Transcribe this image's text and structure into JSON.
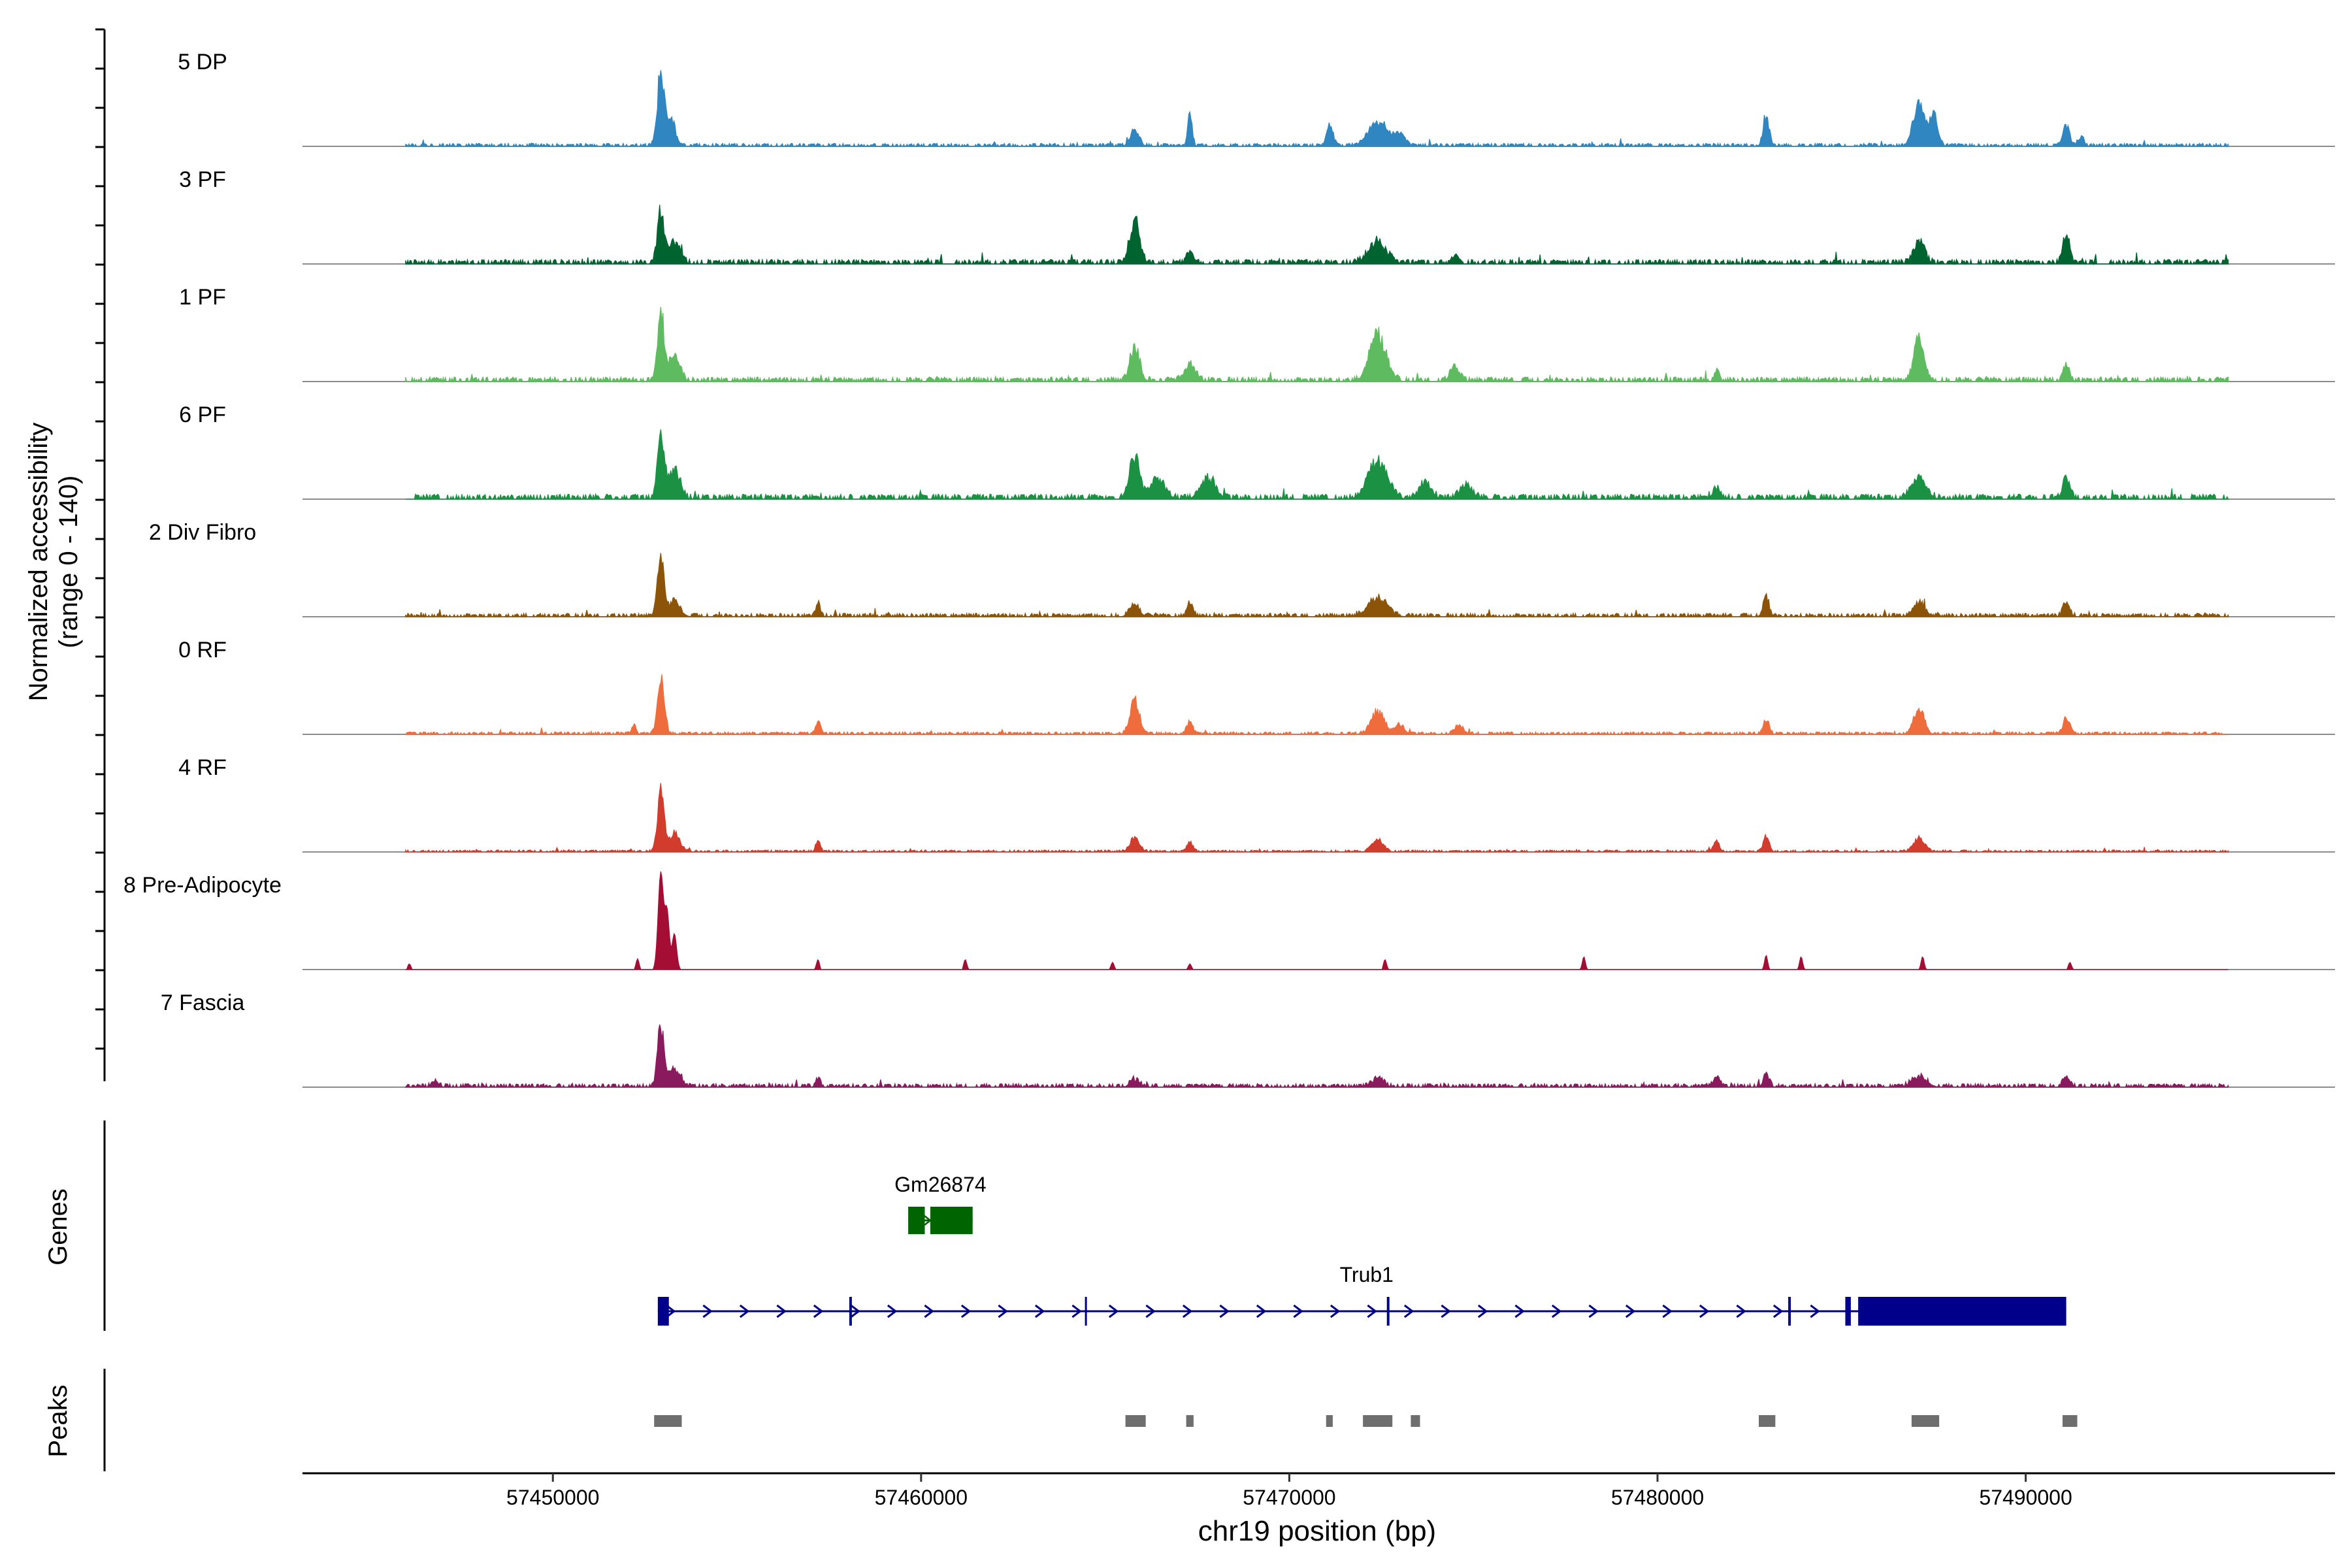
{
  "chart_data": {
    "type": "area",
    "title": "",
    "y_axis_label_line1": "Normalized accessibility",
    "y_axis_label_line2": "(range 0 - 140)",
    "y_range": [
      0,
      140
    ],
    "x_axis_label": "chr19 position (bp)",
    "x_range": [
      57443200,
      57498400
    ],
    "x_ticks": [
      57450000,
      57460000,
      57470000,
      57480000,
      57490000
    ],
    "x_tick_labels": [
      "57450000",
      "57460000",
      "57470000",
      "57480000",
      "57490000"
    ],
    "tracks": [
      {
        "name": "5 DP",
        "color": "#2f86c1",
        "jitter": 0.12,
        "sparse": false,
        "peaks": [
          [
            57452930,
            1.0,
            90
          ],
          [
            57453200,
            0.4,
            120
          ],
          [
            57465800,
            0.18,
            120
          ],
          [
            57467300,
            0.45,
            60
          ],
          [
            57471100,
            0.27,
            90
          ],
          [
            57472400,
            0.33,
            250
          ],
          [
            57473000,
            0.14,
            150
          ],
          [
            57482950,
            0.44,
            80
          ],
          [
            57487100,
            0.55,
            150
          ],
          [
            57487500,
            0.42,
            110
          ],
          [
            57491100,
            0.3,
            90
          ],
          [
            57491500,
            0.12,
            80
          ]
        ]
      },
      {
        "name": "3 PF",
        "color": "#006430",
        "jitter": 0.18,
        "sparse": false,
        "peaks": [
          [
            57452930,
            0.72,
            90
          ],
          [
            57453300,
            0.3,
            150
          ],
          [
            57465800,
            0.62,
            130
          ],
          [
            57467300,
            0.15,
            80
          ],
          [
            57472400,
            0.28,
            250
          ],
          [
            57474500,
            0.12,
            60
          ],
          [
            57487100,
            0.3,
            150
          ],
          [
            57491100,
            0.4,
            90
          ]
        ]
      },
      {
        "name": "1 PF",
        "color": "#5fbb5f",
        "jitter": 0.18,
        "sparse": false,
        "peaks": [
          [
            57452930,
            0.9,
            90
          ],
          [
            57453300,
            0.35,
            150
          ],
          [
            57465800,
            0.45,
            130
          ],
          [
            57467300,
            0.22,
            150
          ],
          [
            57472400,
            0.62,
            220
          ],
          [
            57474500,
            0.2,
            120
          ],
          [
            57481600,
            0.15,
            60
          ],
          [
            57487100,
            0.55,
            140
          ],
          [
            57491100,
            0.2,
            90
          ]
        ]
      },
      {
        "name": "6 PF",
        "color": "#1a9143",
        "jitter": 0.2,
        "sparse": false,
        "peaks": [
          [
            57452930,
            0.85,
            90
          ],
          [
            57453300,
            0.4,
            150
          ],
          [
            57465800,
            0.6,
            130
          ],
          [
            57466400,
            0.28,
            200
          ],
          [
            57467800,
            0.28,
            200
          ],
          [
            57472400,
            0.55,
            250
          ],
          [
            57473700,
            0.22,
            160
          ],
          [
            57474800,
            0.18,
            160
          ],
          [
            57481600,
            0.15,
            100
          ],
          [
            57487100,
            0.25,
            200
          ],
          [
            57491100,
            0.3,
            90
          ]
        ]
      },
      {
        "name": "2 Div Fibro",
        "color": "#8b5409",
        "jitter": 0.14,
        "sparse": false,
        "peaks": [
          [
            57452930,
            0.78,
            90
          ],
          [
            57453300,
            0.2,
            150
          ],
          [
            57457200,
            0.18,
            60
          ],
          [
            57465800,
            0.16,
            130
          ],
          [
            57467300,
            0.16,
            80
          ],
          [
            57472400,
            0.25,
            250
          ],
          [
            57482950,
            0.28,
            80
          ],
          [
            57487100,
            0.18,
            160
          ],
          [
            57491100,
            0.2,
            90
          ]
        ]
      },
      {
        "name": "0 RF",
        "color": "#ef6c3d",
        "jitter": 0.1,
        "sparse": false,
        "peaks": [
          [
            57452200,
            0.12,
            60
          ],
          [
            57452930,
            0.78,
            90
          ],
          [
            57457200,
            0.2,
            60
          ],
          [
            57465800,
            0.48,
            120
          ],
          [
            57467300,
            0.16,
            80
          ],
          [
            57472400,
            0.3,
            180
          ],
          [
            57473000,
            0.13,
            120
          ],
          [
            57474600,
            0.12,
            120
          ],
          [
            57482950,
            0.18,
            80
          ],
          [
            57487100,
            0.35,
            140
          ],
          [
            57491100,
            0.22,
            90
          ]
        ]
      },
      {
        "name": "4 RF",
        "color": "#d23c2c",
        "jitter": 0.08,
        "sparse": false,
        "peaks": [
          [
            57452930,
            0.8,
            90
          ],
          [
            57453300,
            0.25,
            150
          ],
          [
            57457200,
            0.14,
            60
          ],
          [
            57465800,
            0.2,
            120
          ],
          [
            57467300,
            0.12,
            80
          ],
          [
            57472400,
            0.15,
            150
          ],
          [
            57481600,
            0.15,
            80
          ],
          [
            57482950,
            0.2,
            80
          ],
          [
            57487100,
            0.2,
            140
          ]
        ]
      },
      {
        "name": "8 Pre-Adipocyte",
        "color": "#a40e35",
        "jitter": 0.0,
        "sparse": true,
        "peaks": [
          [
            57452930,
            1.35,
            70
          ],
          [
            57453100,
            0.8,
            60
          ],
          [
            57453300,
            0.5,
            60
          ],
          [
            57446100,
            0.08,
            40
          ],
          [
            57452300,
            0.15,
            40
          ],
          [
            57457200,
            0.14,
            40
          ],
          [
            57461200,
            0.14,
            40
          ],
          [
            57465200,
            0.1,
            40
          ],
          [
            57467300,
            0.08,
            40
          ],
          [
            57472600,
            0.14,
            40
          ],
          [
            57478000,
            0.18,
            40
          ],
          [
            57482950,
            0.2,
            40
          ],
          [
            57483900,
            0.18,
            40
          ],
          [
            57487200,
            0.18,
            40
          ],
          [
            57491200,
            0.1,
            40
          ]
        ]
      },
      {
        "name": "7 Fascia",
        "color": "#8a1a5e",
        "jitter": 0.14,
        "sparse": false,
        "peaks": [
          [
            57446800,
            0.08,
            90
          ],
          [
            57452930,
            0.78,
            90
          ],
          [
            57453300,
            0.25,
            150
          ],
          [
            57457200,
            0.12,
            60
          ],
          [
            57465800,
            0.1,
            120
          ],
          [
            57472400,
            0.12,
            150
          ],
          [
            57481600,
            0.12,
            100
          ],
          [
            57482950,
            0.16,
            80
          ],
          [
            57487100,
            0.14,
            200
          ],
          [
            57491100,
            0.14,
            90
          ]
        ]
      }
    ],
    "genes_panel_label": "Genes",
    "genes": [
      {
        "name": "Gm26874",
        "color": "#006400",
        "strand": "+",
        "start": 57459650,
        "end": 57461400,
        "exons": [
          [
            57459650,
            57460100
          ],
          [
            57460250,
            57461400
          ]
        ]
      },
      {
        "name": "Trub1",
        "color": "#00008b",
        "strand": "+",
        "start": 57452850,
        "end": 57491100,
        "exons": [
          [
            57452850,
            57453150
          ],
          [
            57458050,
            57458120
          ],
          [
            57464450,
            57464500
          ],
          [
            57472650,
            57472720
          ],
          [
            57483550,
            57483620
          ],
          [
            57485100,
            57485250
          ],
          [
            57485450,
            57491100
          ]
        ]
      }
    ],
    "peaks_panel_label": "Peaks",
    "peak_regions": [
      [
        57452750,
        57453500
      ],
      [
        57465550,
        57466100
      ],
      [
        57467200,
        57467400
      ],
      [
        57471000,
        57471180
      ],
      [
        57472000,
        57472800
      ],
      [
        57473300,
        57473550
      ],
      [
        57482750,
        57483200
      ],
      [
        57486900,
        57487650
      ],
      [
        57491000,
        57491400
      ]
    ]
  }
}
